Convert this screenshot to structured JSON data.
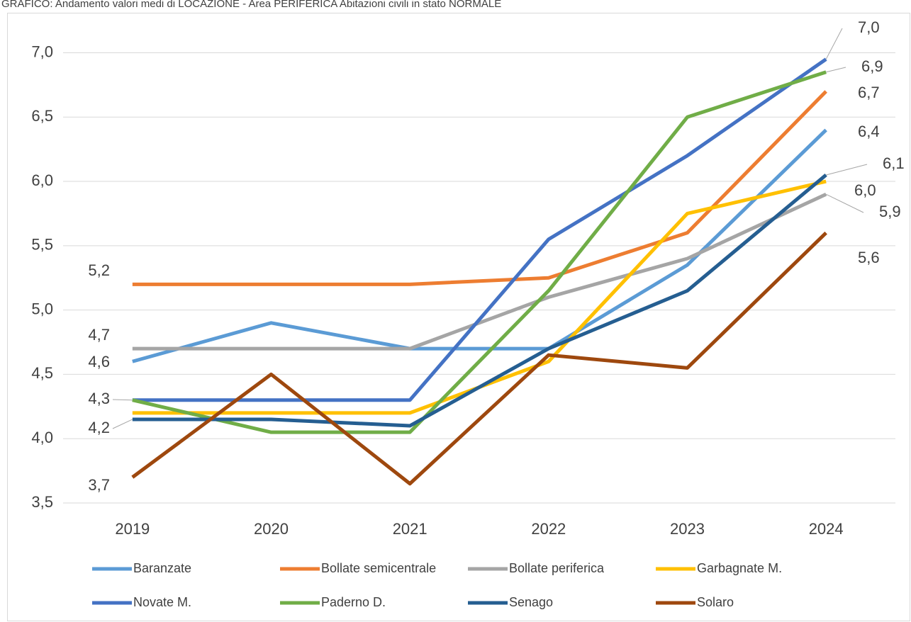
{
  "chart_data": {
    "type": "line",
    "title": "GRAFICO: Andamento valori medi di LOCAZIONE - Area PERIFERICA Abitazioni civili in stato NORMALE",
    "categories": [
      "2019",
      "2020",
      "2021",
      "2022",
      "2023",
      "2024"
    ],
    "ylim": [
      3.5,
      7.3
    ],
    "yticks": [
      {
        "value": 3.5,
        "label": "3,5"
      },
      {
        "value": 4.0,
        "label": "4,0"
      },
      {
        "value": 4.5,
        "label": "4,5"
      },
      {
        "value": 5.0,
        "label": "5,0"
      },
      {
        "value": 5.5,
        "label": "5,5"
      },
      {
        "value": 6.0,
        "label": "6,0"
      },
      {
        "value": 6.5,
        "label": "6,5"
      },
      {
        "value": 7.0,
        "label": "7,0"
      }
    ],
    "grid": true,
    "legend": "bottom",
    "series": [
      {
        "name": "Baranzate",
        "color": "#5b9bd5",
        "values": [
          4.6,
          4.9,
          4.7,
          4.7,
          5.35,
          6.4
        ],
        "value_labels": [
          "4,6",
          null,
          null,
          null,
          null,
          "6,4"
        ]
      },
      {
        "name": "Bollate semicentrale",
        "color": "#ed7d31",
        "values": [
          5.2,
          5.2,
          5.2,
          5.25,
          5.6,
          6.7
        ],
        "value_labels": [
          "5,2",
          null,
          null,
          null,
          null,
          "6,7"
        ]
      },
      {
        "name": "Bollate periferica",
        "color": "#a5a5a5",
        "values": [
          4.7,
          4.7,
          4.7,
          5.1,
          5.4,
          5.9
        ],
        "value_labels": [
          "4,7",
          null,
          null,
          null,
          null,
          "5,9"
        ]
      },
      {
        "name": "Garbagnate M.",
        "color": "#ffc000",
        "values": [
          4.2,
          4.2,
          4.2,
          4.6,
          5.75,
          6.0
        ],
        "value_labels": [
          null,
          null,
          null,
          null,
          null,
          "6,0"
        ]
      },
      {
        "name": "Novate M.",
        "color": "#4472c4",
        "values": [
          4.3,
          4.3,
          4.3,
          5.55,
          6.2,
          6.95
        ],
        "value_labels": [
          "4,3",
          null,
          null,
          null,
          null,
          "7,0"
        ]
      },
      {
        "name": "Paderno D.",
        "color": "#70ad47",
        "values": [
          4.3,
          4.05,
          4.05,
          5.15,
          6.5,
          6.85
        ],
        "value_labels": [
          null,
          null,
          null,
          null,
          null,
          "6,9"
        ]
      },
      {
        "name": "Senago",
        "color": "#255e91",
        "values": [
          4.15,
          4.15,
          4.1,
          4.7,
          5.15,
          6.05
        ],
        "value_labels": [
          "4,2",
          null,
          null,
          null,
          null,
          "6,1"
        ]
      },
      {
        "name": "Solaro",
        "color": "#9e480e",
        "values": [
          3.7,
          4.5,
          3.65,
          4.65,
          4.55,
          5.6
        ],
        "value_labels": [
          "3,7",
          null,
          null,
          null,
          null,
          "5,6"
        ]
      }
    ]
  }
}
